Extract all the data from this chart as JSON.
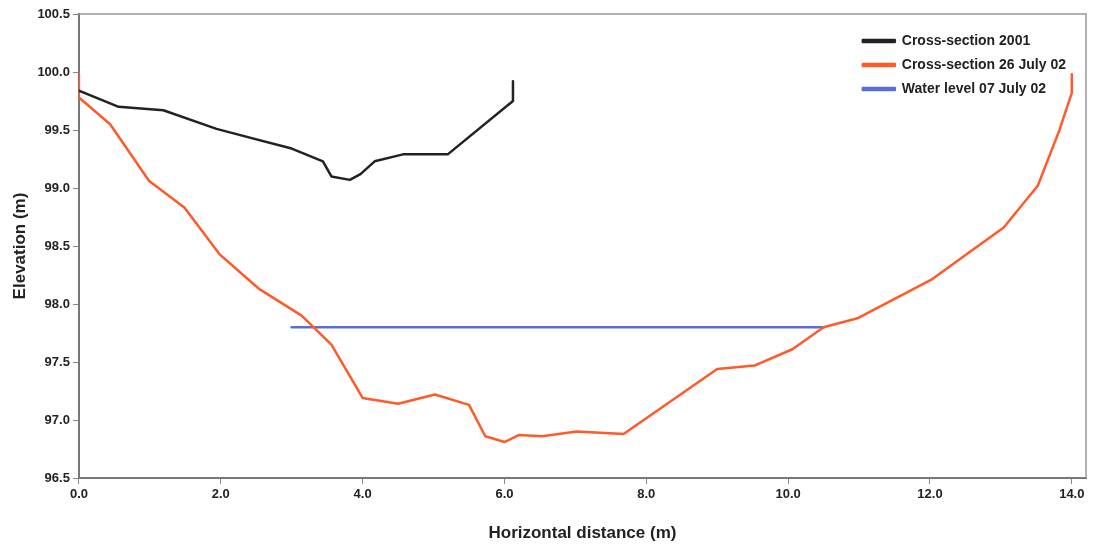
{
  "chart_data": {
    "type": "line",
    "xlabel": "Horizontal distance (m)",
    "ylabel": "Elevation (m)",
    "xlim": [
      0,
      14.2
    ],
    "xticks": [
      {
        "value": 0,
        "label": "0.0"
      },
      {
        "value": 2,
        "label": "2.0"
      },
      {
        "value": 4,
        "label": "4.0"
      },
      {
        "value": 6,
        "label": "6.0"
      },
      {
        "value": 8,
        "label": "8.0"
      },
      {
        "value": 10,
        "label": "10.0"
      },
      {
        "value": 12,
        "label": "12.0"
      },
      {
        "value": 14,
        "label": "14.0"
      }
    ],
    "ylim": [
      96.5,
      100.5
    ],
    "yticks": [
      96.5,
      {
        "value": 97,
        "label": "97.0"
      },
      97.5,
      {
        "value": 98,
        "label": "98.0"
      },
      98.5,
      {
        "value": 99,
        "label": "99.0"
      },
      99.5,
      {
        "value": 100,
        "label": "100.0"
      },
      100.5
    ],
    "grid": false,
    "legend": "top right",
    "marker": "none",
    "line_style": "solid",
    "series": [
      {
        "name": "Cross-section 2001",
        "color": "#222222",
        "x": [
          0,
          0.56,
          1.19,
          1.94,
          3.0,
          3.44,
          3.56,
          3.82,
          3.97,
          4.17,
          4.57,
          5.2,
          6.12,
          6.12
        ],
        "values": [
          99.84,
          99.7,
          99.67,
          99.51,
          99.34,
          99.23,
          99.1,
          99.07,
          99.12,
          99.23,
          99.29,
          99.29,
          99.75,
          99.92
        ]
      },
      {
        "name": "Cross-section 26 July 02",
        "color": "#ff5a2a",
        "x": [
          0,
          0,
          0.44,
          0.99,
          1.49,
          1.98,
          2.54,
          3.14,
          3.56,
          4.0,
          4.5,
          5.02,
          5.5,
          5.73,
          6.0,
          6.2,
          6.53,
          7.02,
          7.68,
          9.0,
          9.53,
          10.06,
          10.5,
          10.99,
          12.02,
          13.04,
          13.52,
          13.82,
          14.0,
          14.0
        ],
        "values": [
          99.98,
          99.78,
          99.55,
          99.06,
          98.83,
          98.43,
          98.13,
          97.9,
          97.65,
          97.19,
          97.14,
          97.22,
          97.13,
          96.86,
          96.81,
          96.87,
          96.86,
          96.9,
          96.88,
          97.44,
          97.47,
          97.61,
          97.8,
          97.88,
          98.21,
          98.66,
          99.02,
          99.49,
          99.82,
          99.98
        ]
      },
      {
        "name": "Water level 07 July 02",
        "color": "#5a6fcf",
        "x": [
          3.0,
          10.5
        ],
        "values": [
          97.8,
          97.8
        ]
      }
    ]
  }
}
